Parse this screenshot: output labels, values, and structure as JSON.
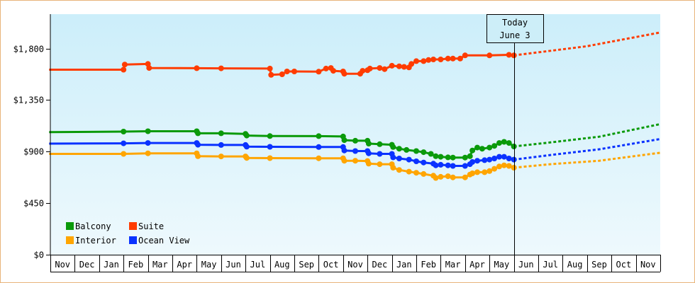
{
  "chart_data": {
    "type": "line",
    "title": "",
    "xlabel": "",
    "ylabel": "",
    "ylim": [
      0,
      2100
    ],
    "y_ticks": [
      {
        "value": 0,
        "label": "$0"
      },
      {
        "value": 450,
        "label": "$450"
      },
      {
        "value": 900,
        "label": "$900"
      },
      {
        "value": 1350,
        "label": "$1,350"
      },
      {
        "value": 1800,
        "label": "$1,800"
      }
    ],
    "x_ticks": [
      "Nov",
      "Dec",
      "Jan",
      "Feb",
      "Mar",
      "Apr",
      "May",
      "Jun",
      "Jul",
      "Aug",
      "Sep",
      "Oct",
      "Nov",
      "Dec",
      "Jan",
      "Feb",
      "Mar",
      "Apr",
      "May",
      "Jun",
      "Jul",
      "Aug",
      "Sep",
      "Oct",
      "Nov"
    ],
    "x_range": [
      0,
      25
    ],
    "today_x": 19,
    "annotation": {
      "line1": "Today",
      "line2": "June 3"
    },
    "grid": false,
    "legend_position": "bottom-left",
    "background": {
      "top": "#cceefa",
      "bottom": "#eef9fd"
    },
    "series": [
      {
        "name": "Balcony",
        "color": "#0a9a0a",
        "points": [
          [
            -0.05,
            1070
          ],
          [
            3.0,
            1075
          ],
          [
            4.0,
            1078
          ],
          [
            6.0,
            1078
          ],
          [
            6.05,
            1060
          ],
          [
            7.0,
            1060
          ],
          [
            8.0,
            1055
          ],
          [
            8.05,
            1040
          ],
          [
            9.0,
            1036
          ],
          [
            11.0,
            1035
          ],
          [
            12.0,
            1032
          ],
          [
            12.05,
            1000
          ],
          [
            12.5,
            995
          ],
          [
            13.0,
            995
          ],
          [
            13.05,
            970
          ],
          [
            13.5,
            965
          ],
          [
            14.0,
            960
          ],
          [
            14.05,
            940
          ],
          [
            14.3,
            925
          ],
          [
            14.6,
            915
          ],
          [
            15.0,
            905
          ],
          [
            15.3,
            895
          ],
          [
            15.6,
            880
          ],
          [
            15.8,
            860
          ],
          [
            16.0,
            855
          ],
          [
            16.3,
            850
          ],
          [
            16.5,
            848
          ],
          [
            17.0,
            848
          ],
          [
            17.2,
            860
          ],
          [
            17.3,
            910
          ],
          [
            17.5,
            935
          ],
          [
            17.7,
            925
          ],
          [
            18.0,
            935
          ],
          [
            18.2,
            950
          ],
          [
            18.4,
            975
          ],
          [
            18.6,
            985
          ],
          [
            18.8,
            975
          ],
          [
            19.0,
            945
          ]
        ],
        "forecast": [
          [
            19.0,
            945
          ],
          [
            20.5,
            980
          ],
          [
            22.5,
            1030
          ],
          [
            25.0,
            1140
          ]
        ]
      },
      {
        "name": "Suite",
        "color": "#ff3c00",
        "points": [
          [
            -0.05,
            1615
          ],
          [
            3.0,
            1615
          ],
          [
            3.05,
            1660
          ],
          [
            4.0,
            1665
          ],
          [
            4.05,
            1630
          ],
          [
            6.0,
            1628
          ],
          [
            7.0,
            1627
          ],
          [
            9.0,
            1625
          ],
          [
            9.05,
            1570
          ],
          [
            9.5,
            1575
          ],
          [
            9.7,
            1600
          ],
          [
            10.0,
            1600
          ],
          [
            11.0,
            1598
          ],
          [
            11.3,
            1625
          ],
          [
            11.5,
            1630
          ],
          [
            11.6,
            1605
          ],
          [
            12.0,
            1600
          ],
          [
            12.05,
            1580
          ],
          [
            12.7,
            1580
          ],
          [
            12.8,
            1605
          ],
          [
            13.0,
            1610
          ],
          [
            13.1,
            1625
          ],
          [
            13.5,
            1630
          ],
          [
            13.7,
            1620
          ],
          [
            14.0,
            1650
          ],
          [
            14.3,
            1645
          ],
          [
            14.5,
            1640
          ],
          [
            14.7,
            1635
          ],
          [
            14.8,
            1665
          ],
          [
            15.0,
            1690
          ],
          [
            15.3,
            1690
          ],
          [
            15.5,
            1700
          ],
          [
            15.7,
            1705
          ],
          [
            16.0,
            1705
          ],
          [
            16.3,
            1712
          ],
          [
            16.5,
            1712
          ],
          [
            16.8,
            1712
          ],
          [
            17.0,
            1740
          ],
          [
            18.0,
            1740
          ],
          [
            18.8,
            1745
          ],
          [
            19.0,
            1740
          ]
        ],
        "forecast": [
          [
            19.0,
            1740
          ],
          [
            22.0,
            1820
          ],
          [
            25.0,
            1940
          ]
        ]
      },
      {
        "name": "Interior",
        "color": "#ffa500",
        "points": [
          [
            -0.05,
            880
          ],
          [
            3.0,
            880
          ],
          [
            4.0,
            885
          ],
          [
            6.0,
            885
          ],
          [
            6.05,
            860
          ],
          [
            7.0,
            858
          ],
          [
            8.0,
            858
          ],
          [
            8.05,
            845
          ],
          [
            9.0,
            843
          ],
          [
            11.0,
            842
          ],
          [
            12.0,
            842
          ],
          [
            12.05,
            820
          ],
          [
            12.5,
            820
          ],
          [
            13.0,
            818
          ],
          [
            13.05,
            795
          ],
          [
            13.5,
            790
          ],
          [
            14.0,
            790
          ],
          [
            14.05,
            760
          ],
          [
            14.3,
            740
          ],
          [
            14.7,
            725
          ],
          [
            15.0,
            715
          ],
          [
            15.3,
            705
          ],
          [
            15.7,
            690
          ],
          [
            15.8,
            670
          ],
          [
            16.0,
            680
          ],
          [
            16.3,
            685
          ],
          [
            16.5,
            675
          ],
          [
            17.0,
            675
          ],
          [
            17.2,
            700
          ],
          [
            17.3,
            710
          ],
          [
            17.5,
            720
          ],
          [
            17.8,
            720
          ],
          [
            18.0,
            730
          ],
          [
            18.2,
            750
          ],
          [
            18.4,
            770
          ],
          [
            18.6,
            780
          ],
          [
            18.8,
            775
          ],
          [
            19.0,
            760
          ]
        ],
        "forecast": [
          [
            19.0,
            760
          ],
          [
            20.5,
            790
          ],
          [
            22.5,
            820
          ],
          [
            25.0,
            890
          ]
        ]
      },
      {
        "name": "Ocean View",
        "color": "#0a32ff",
        "points": [
          [
            -0.05,
            970
          ],
          [
            3.0,
            972
          ],
          [
            4.0,
            975
          ],
          [
            6.0,
            975
          ],
          [
            6.05,
            960
          ],
          [
            7.0,
            958
          ],
          [
            8.0,
            958
          ],
          [
            8.05,
            943
          ],
          [
            9.0,
            942
          ],
          [
            11.0,
            940
          ],
          [
            12.0,
            940
          ],
          [
            12.05,
            910
          ],
          [
            12.5,
            905
          ],
          [
            13.0,
            905
          ],
          [
            13.05,
            885
          ],
          [
            13.5,
            880
          ],
          [
            14.0,
            880
          ],
          [
            14.05,
            850
          ],
          [
            14.3,
            840
          ],
          [
            14.7,
            830
          ],
          [
            15.0,
            815
          ],
          [
            15.3,
            805
          ],
          [
            15.7,
            795
          ],
          [
            15.8,
            780
          ],
          [
            16.0,
            785
          ],
          [
            16.3,
            780
          ],
          [
            16.5,
            775
          ],
          [
            17.0,
            775
          ],
          [
            17.2,
            790
          ],
          [
            17.3,
            810
          ],
          [
            17.5,
            820
          ],
          [
            17.8,
            825
          ],
          [
            18.0,
            830
          ],
          [
            18.2,
            840
          ],
          [
            18.4,
            855
          ],
          [
            18.6,
            855
          ],
          [
            18.8,
            840
          ],
          [
            19.0,
            830
          ]
        ],
        "forecast": [
          [
            19.0,
            830
          ],
          [
            20.5,
            870
          ],
          [
            22.5,
            920
          ],
          [
            25.0,
            1010
          ]
        ]
      }
    ],
    "legend": [
      {
        "label": "Balcony",
        "color": "#0a9a0a"
      },
      {
        "label": "Suite",
        "color": "#ff3c00"
      },
      {
        "label": "Interior",
        "color": "#ffa500"
      },
      {
        "label": "Ocean View",
        "color": "#0a32ff"
      }
    ]
  }
}
